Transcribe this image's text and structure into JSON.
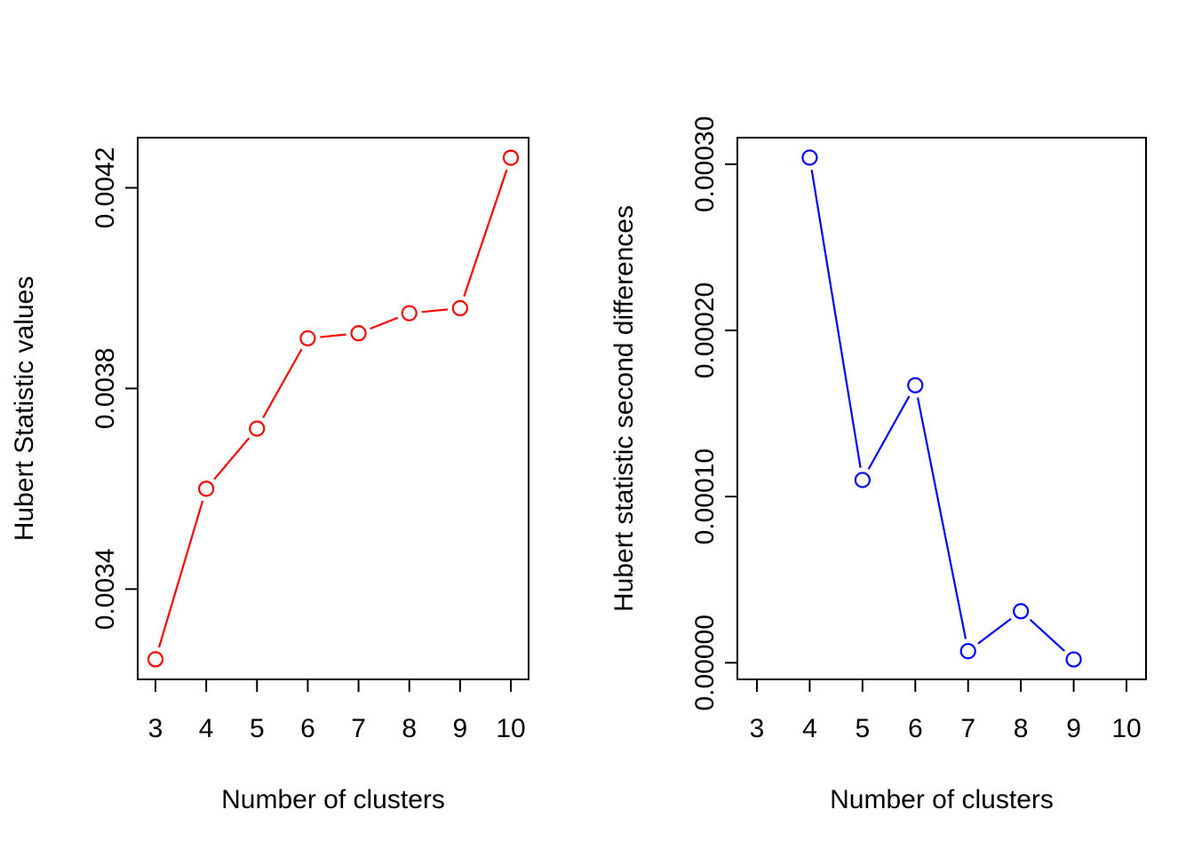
{
  "figure": {
    "background": "#FFFFFF",
    "axis_color": "#000000"
  },
  "chart_data": [
    {
      "name": "hubert-statistic-values",
      "type": "line",
      "marker": "open-circle",
      "line_style": "points-and-segments",
      "color": "#FF0000",
      "title": "",
      "xlabel": "Number of clusters",
      "ylabel": "Hubert Statistic values",
      "x": [
        3,
        4,
        5,
        6,
        7,
        8,
        9,
        10
      ],
      "y": [
        0.00326,
        0.0036,
        0.00372,
        0.0039,
        0.00391,
        0.00395,
        0.00396,
        0.00426
      ],
      "xlim": [
        3,
        10
      ],
      "ylim": [
        0.00322,
        0.0043
      ],
      "xticks": {
        "values": [
          3,
          4,
          5,
          6,
          7,
          8,
          9,
          10
        ],
        "labels": [
          "3",
          "4",
          "5",
          "6",
          "7",
          "8",
          "9",
          "10"
        ]
      },
      "yticks": {
        "values": [
          0.0034,
          0.0038,
          0.0042
        ],
        "labels": [
          "0.0034",
          "0.0038",
          "0.0042"
        ]
      },
      "grid": false,
      "legend": "none"
    },
    {
      "name": "hubert-statistic-second-differences",
      "type": "line",
      "marker": "open-circle",
      "line_style": "points-and-segments",
      "color": "#0000FF",
      "title": "",
      "xlabel": "Number of clusters",
      "ylabel": "Hubert statistic second differences",
      "x": [
        4,
        5,
        6,
        7,
        8,
        9
      ],
      "y": [
        0.000304,
        0.00011,
        0.000167,
        7e-06,
        3.1e-05,
        2e-06
      ],
      "xlim": [
        3,
        10
      ],
      "ylim": [
        -1e-05,
        0.000316
      ],
      "xticks": {
        "values": [
          3,
          4,
          5,
          6,
          7,
          8,
          9,
          10
        ],
        "labels": [
          "3",
          "4",
          "5",
          "6",
          "7",
          "8",
          "9",
          "10"
        ]
      },
      "yticks": {
        "values": [
          0,
          0.0001,
          0.0002,
          0.0003
        ],
        "labels": [
          "0.00000",
          "0.00010",
          "0.00020",
          "0.00030"
        ]
      },
      "grid": false,
      "legend": "none"
    }
  ]
}
